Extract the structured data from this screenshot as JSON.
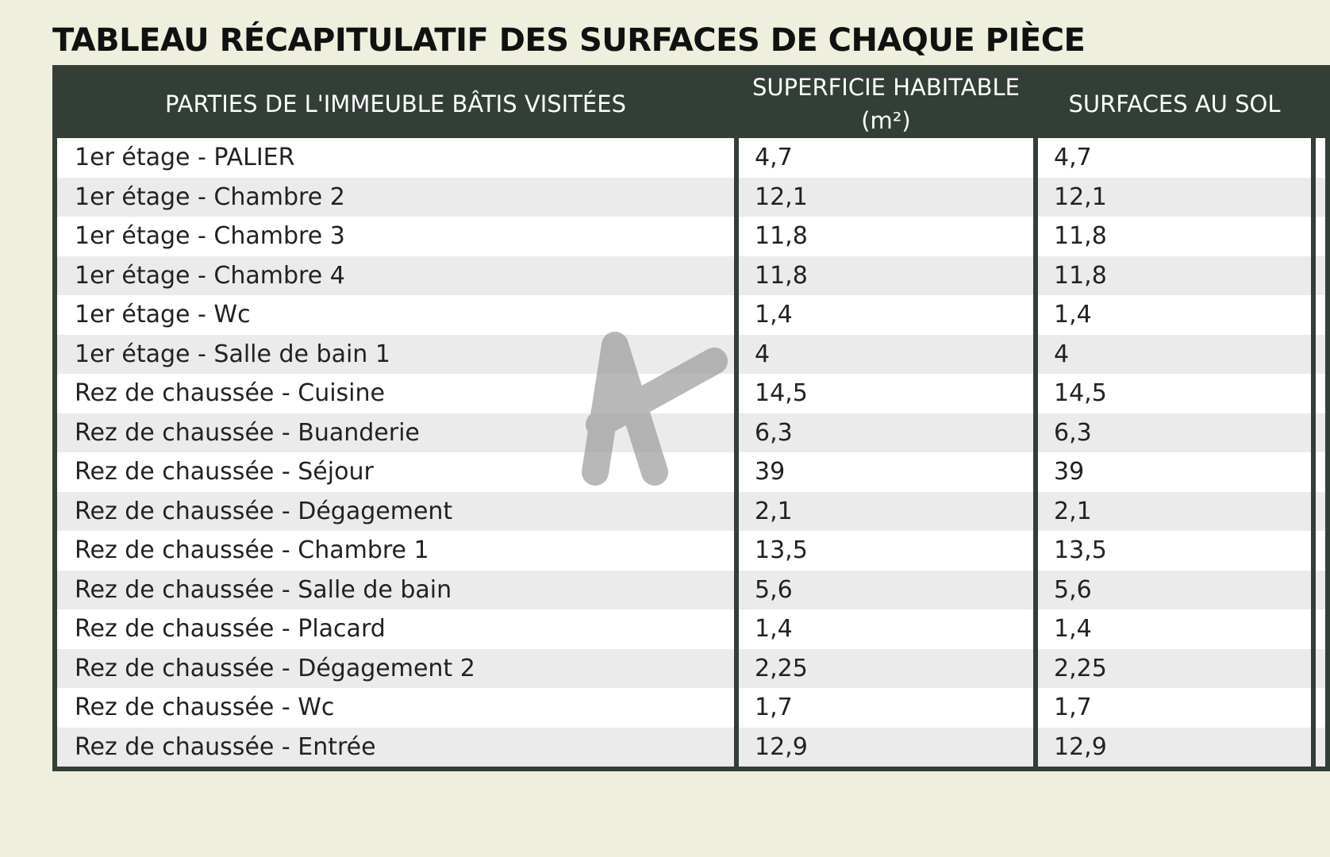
{
  "title": "TABLEAU RÉCAPITULATIF DES SURFACES DE CHAQUE PIÈCE",
  "table": {
    "headers": [
      "PARTIES DE L'IMMEUBLE BÂTIS VISITÉES",
      "SUPERFICIE HABITABLE (m²)",
      "SURFACES AU SOL"
    ],
    "rows": [
      [
        "1er étage - PALIER",
        "4,7",
        "4,7"
      ],
      [
        "1er étage - Chambre 2",
        "12,1",
        "12,1"
      ],
      [
        "1er étage - Chambre 3",
        "11,8",
        "11,8"
      ],
      [
        "1er étage - Chambre 4",
        "11,8",
        "11,8"
      ],
      [
        "1er étage - Wc",
        "1,4",
        "1,4"
      ],
      [
        "1er étage - Salle de bain 1",
        "4",
        "4"
      ],
      [
        "Rez de chaussée - Cuisine",
        "14,5",
        "14,5"
      ],
      [
        "Rez de chaussée - Buanderie",
        "6,3",
        "6,3"
      ],
      [
        "Rez de chaussée - Séjour",
        "39",
        "39"
      ],
      [
        "Rez de chaussée - Dégagement",
        "2,1",
        "2,1"
      ],
      [
        "Rez de chaussée - Chambre 1",
        "13,5",
        "13,5"
      ],
      [
        "Rez de chaussée - Salle de bain",
        "5,6",
        "5,6"
      ],
      [
        "Rez de chaussée - Placard",
        "1,4",
        "1,4"
      ],
      [
        "Rez de chaussée - Dégagement 2",
        "2,25",
        "2,25"
      ],
      [
        "Rez de chaussée - Wc",
        "1,7",
        "1,7"
      ],
      [
        "Rez de chaussée - Entrée",
        "12,9",
        "12,9"
      ]
    ]
  }
}
